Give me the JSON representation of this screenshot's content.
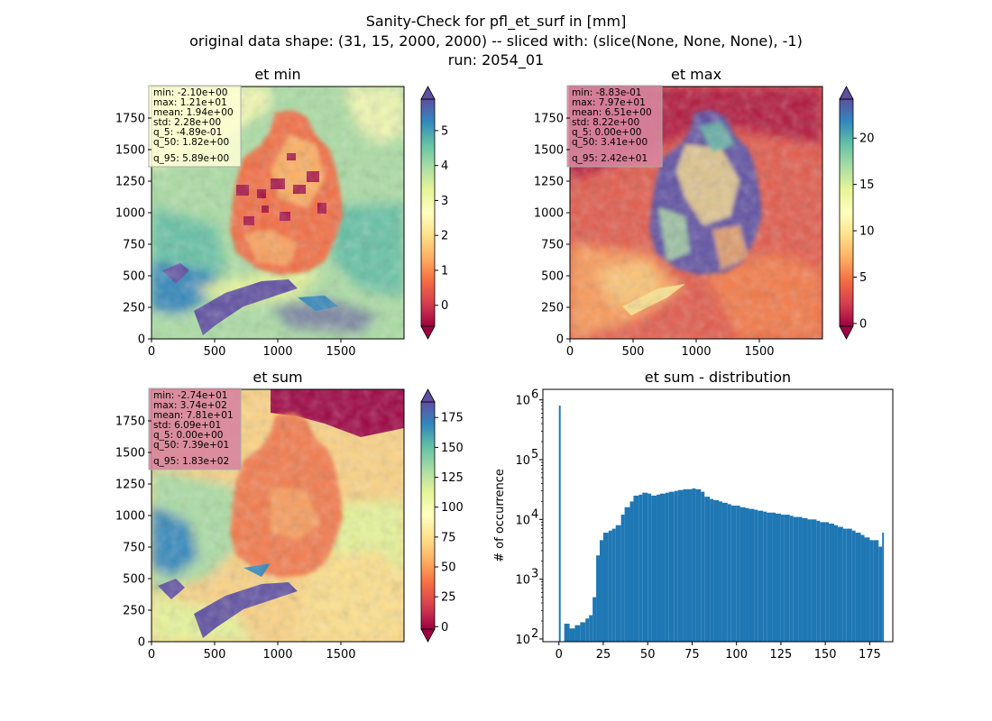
{
  "figure": {
    "title_lines": [
      "Sanity-Check for pfl_et_surf in [mm]",
      "original data shape: (31, 15, 2000, 2000) -- sliced with: (slice(None, None, None), -1)",
      "run: 2054_01"
    ]
  },
  "colormap": {
    "name": "Spectral",
    "stops": [
      "#9e0142",
      "#d53e4f",
      "#f46d43",
      "#fdae61",
      "#fee08b",
      "#ffffbf",
      "#e6f598",
      "#abdda4",
      "#66c2a5",
      "#3288bd",
      "#5e4fa2"
    ]
  },
  "panels": [
    {
      "title": "et min",
      "x_ticks": [
        "0",
        "500",
        "1000",
        "1500"
      ],
      "y_ticks": [
        "0",
        "250",
        "500",
        "750",
        "1000",
        "1250",
        "1500",
        "1750"
      ],
      "colorbar": {
        "range": [
          -0.6,
          5.9
        ],
        "ticks": [
          "0",
          "1",
          "2",
          "3",
          "4",
          "5"
        ],
        "tick_values": [
          0,
          1,
          2,
          3,
          4,
          5
        ],
        "extend": "both"
      },
      "stats": [
        "min: -2.10e+00",
        "max: 1.21e+01",
        "mean: 1.94e+00",
        "std: 2.28e+00",
        "q_5: -4.89e-01",
        "q_50: 1.82e+00",
        "q_95: 5.89e+00"
      ],
      "stats_box_color": "#ffffd6"
    },
    {
      "title": "et max",
      "x_ticks": [
        "0",
        "500",
        "1000",
        "1500"
      ],
      "y_ticks": [
        "0",
        "250",
        "500",
        "750",
        "1000",
        "1250",
        "1500",
        "1750"
      ],
      "colorbar": {
        "range": [
          -0.3,
          24.2
        ],
        "ticks": [
          "0",
          "5",
          "10",
          "15",
          "20"
        ],
        "tick_values": [
          0,
          5,
          10,
          15,
          20
        ],
        "extend": "both"
      },
      "stats": [
        "min: -8.83e-01",
        "max: 7.97e+01",
        "mean: 6.51e+00",
        "std: 8.22e+00",
        "q_5: 0.00e+00",
        "q_50: 3.41e+00",
        "q_95: 2.42e+01"
      ],
      "stats_box_color": "#d7859f"
    },
    {
      "title": "et sum",
      "x_ticks": [
        "0",
        "500",
        "1000",
        "1500"
      ],
      "y_ticks": [
        "0",
        "250",
        "500",
        "750",
        "1000",
        "1250",
        "1500",
        "1750"
      ],
      "colorbar": {
        "range": [
          -2,
          188
        ],
        "ticks": [
          "0",
          "25",
          "50",
          "75",
          "100",
          "125",
          "150",
          "175"
        ],
        "tick_values": [
          0,
          25,
          50,
          75,
          100,
          125,
          150,
          175
        ],
        "extend": "both"
      },
      "stats": [
        "min: -2.74e+01",
        "max: 3.74e+02",
        "mean: 7.81e+01",
        "std: 6.09e+01",
        "q_5: 0.00e+00",
        "q_50: 7.39e+01",
        "q_95: 1.83e+02"
      ],
      "stats_box_color": "#d7859f"
    }
  ],
  "chart_data": {
    "type": "bar",
    "title": "et sum - distribution",
    "xlabel": "",
    "ylabel": "# of occurrence",
    "x_ticks": [
      "0",
      "25",
      "50",
      "75",
      "100",
      "125",
      "150",
      "175"
    ],
    "x_tick_values": [
      0,
      25,
      50,
      75,
      100,
      125,
      150,
      175
    ],
    "y_scale": "log",
    "y_ticks": [
      {
        "base": "10",
        "exp": "2",
        "value": 100
      },
      {
        "base": "10",
        "exp": "3",
        "value": 1000
      },
      {
        "base": "10",
        "exp": "4",
        "value": 10000
      },
      {
        "base": "10",
        "exp": "5",
        "value": 100000
      },
      {
        "base": "10",
        "exp": "6",
        "value": 1000000
      }
    ],
    "xlim": [
      -9,
      188
    ],
    "ylim": [
      90,
      1500000
    ],
    "bar_color": "#1f77b4",
    "x": [
      0,
      3,
      6,
      9,
      12,
      15,
      17,
      19,
      21,
      23,
      25,
      28,
      30,
      32,
      35,
      37,
      40,
      42,
      45,
      47,
      50,
      52,
      55,
      57,
      60,
      62,
      65,
      67,
      70,
      72,
      75,
      77,
      80,
      82,
      85,
      87,
      90,
      92,
      95,
      97,
      100,
      102,
      105,
      107,
      110,
      112,
      115,
      117,
      120,
      122,
      125,
      127,
      130,
      132,
      135,
      137,
      140,
      142,
      145,
      147,
      150,
      152,
      155,
      157,
      160,
      162,
      165,
      167,
      170,
      172,
      175,
      177,
      180,
      182
    ],
    "values": [
      800000,
      180,
      150,
      170,
      190,
      220,
      250,
      500,
      2500,
      4500,
      6000,
      6500,
      7000,
      8000,
      12000,
      16000,
      20000,
      25000,
      26000,
      28000,
      27000,
      25000,
      26000,
      27000,
      28000,
      29000,
      30000,
      31000,
      32000,
      32000,
      33000,
      32000,
      29000,
      24000,
      22000,
      21000,
      20000,
      19000,
      18000,
      17000,
      17000,
      16000,
      15500,
      15000,
      14500,
      14000,
      13500,
      13000,
      13000,
      12500,
      12000,
      12000,
      11500,
      11000,
      11000,
      10500,
      10000,
      10000,
      9500,
      9000,
      9000,
      8500,
      8000,
      7500,
      7000,
      7000,
      6500,
      6000,
      5500,
      5000,
      4500,
      4500,
      3500,
      6000
    ]
  }
}
